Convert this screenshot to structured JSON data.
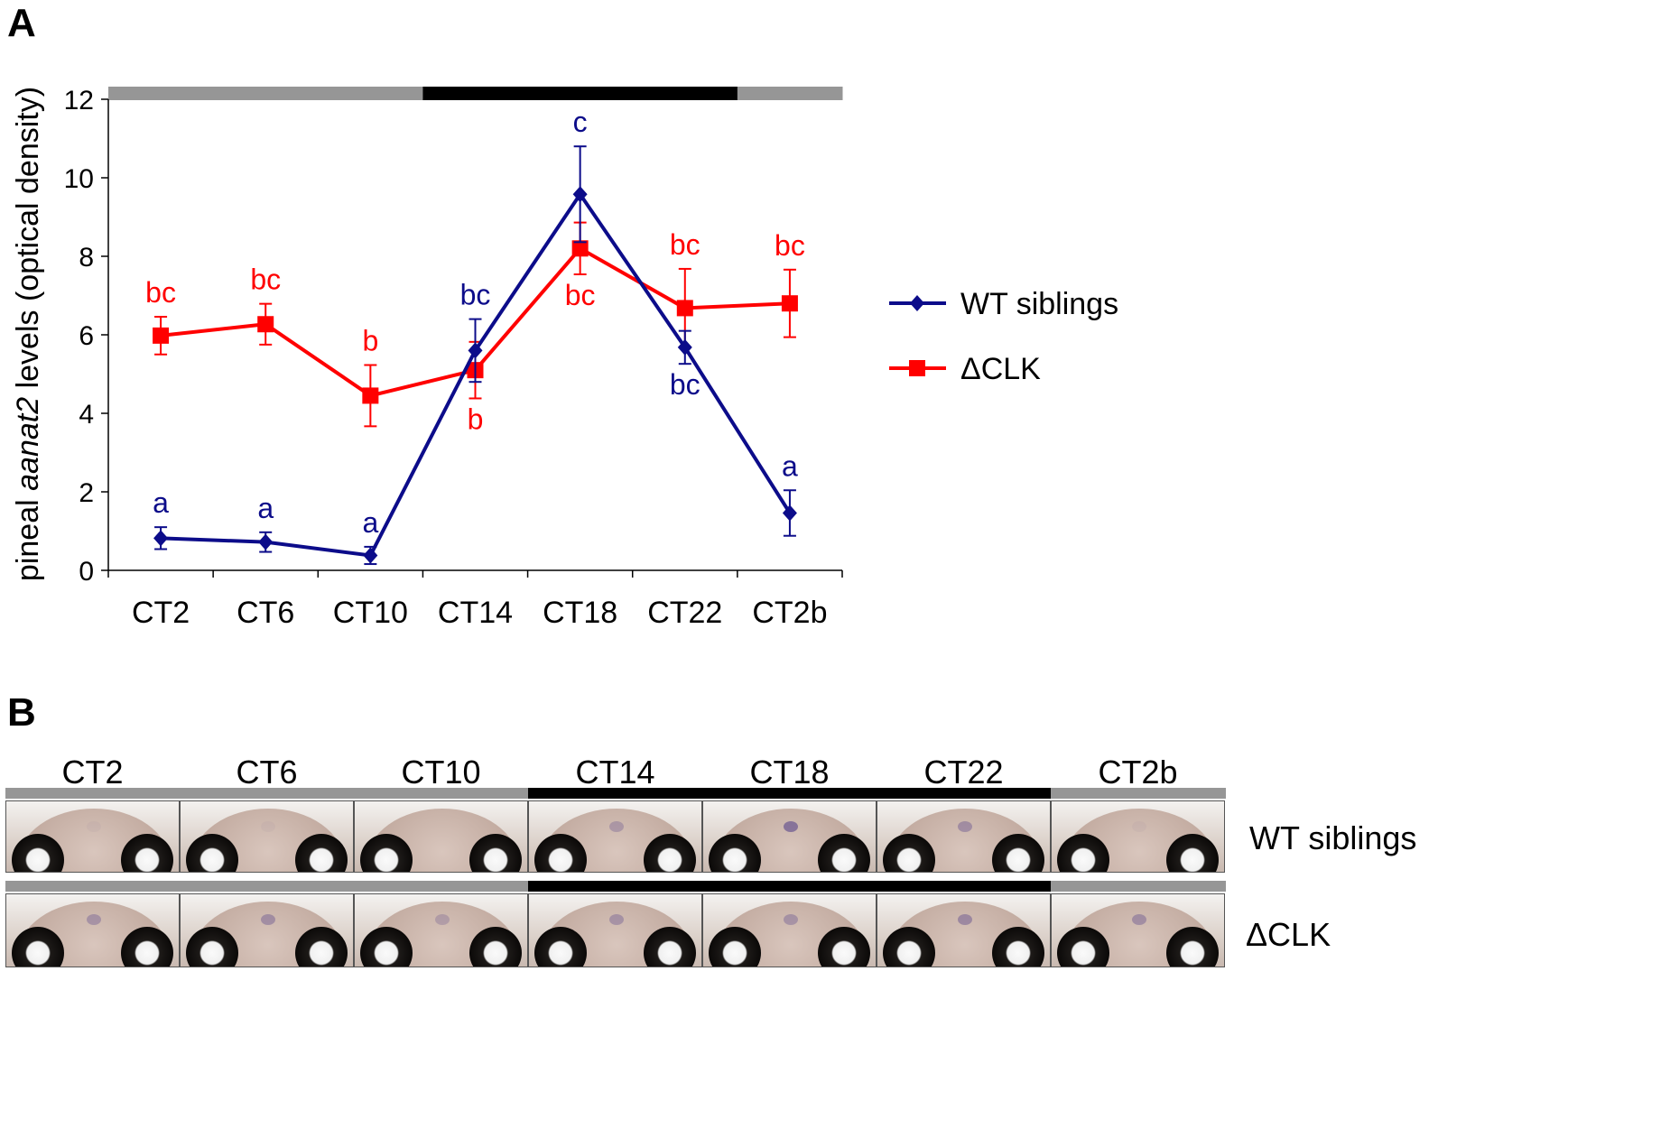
{
  "panels": {
    "a_label": "A",
    "b_label": "B"
  },
  "colors": {
    "wt": "#0c0c8a",
    "dclk": "#ff0000",
    "light_phase": "#969696",
    "dark_phase": "#000000"
  },
  "chart_data": {
    "type": "line",
    "ylabel_parts": [
      "pineal ",
      "aanat2",
      " levels (optical density)"
    ],
    "xlabel": "",
    "ylim": [
      0,
      12
    ],
    "yticks": [
      0,
      2,
      4,
      6,
      8,
      10,
      12
    ],
    "categories": [
      "CT2",
      "CT6",
      "CT10",
      "CT14",
      "CT18",
      "CT22",
      "CT2b"
    ],
    "grid": false,
    "legend_position": "right",
    "light_dark_bar": [
      "light",
      "light",
      "light",
      "dark",
      "dark",
      "dark",
      "light"
    ],
    "series": [
      {
        "name": "WT siblings",
        "marker": "diamond",
        "values": [
          0.82,
          0.72,
          0.38,
          5.6,
          9.58,
          5.68,
          1.46
        ],
        "errors": [
          0.28,
          0.25,
          0.22,
          0.8,
          1.22,
          0.42,
          0.58
        ],
        "letters": [
          "a",
          "a",
          "a",
          "bc",
          "c",
          "bc",
          "a"
        ],
        "letter_pos": [
          "above",
          "above",
          "above",
          "above",
          "above",
          "below",
          "above"
        ]
      },
      {
        "name": "ΔCLK",
        "marker": "square",
        "values": [
          5.98,
          6.27,
          4.45,
          5.1,
          8.2,
          6.68,
          6.8
        ],
        "errors": [
          0.48,
          0.52,
          0.78,
          0.72,
          0.66,
          1.0,
          0.86
        ],
        "letters": [
          "bc",
          "bc",
          "b",
          "b",
          "bc",
          "bc",
          "bc"
        ],
        "letter_pos": [
          "above",
          "above",
          "above",
          "below",
          "below",
          "above",
          "above"
        ]
      }
    ]
  },
  "panel_b": {
    "headers": [
      "CT2",
      "CT6",
      "CT10",
      "CT14",
      "CT18",
      "CT22",
      "CT2b"
    ],
    "rows": [
      {
        "label": "WT siblings",
        "stain": [
          0.05,
          0.05,
          0.0,
          0.35,
          0.7,
          0.45,
          0.05
        ]
      },
      {
        "label": "ΔCLK",
        "stain": [
          0.4,
          0.45,
          0.3,
          0.4,
          0.4,
          0.5,
          0.45
        ]
      }
    ]
  }
}
